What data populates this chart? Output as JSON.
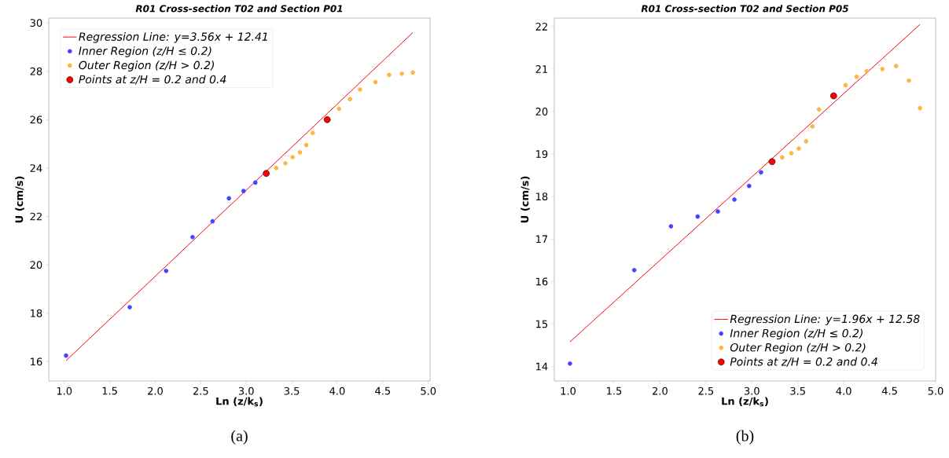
{
  "chart_data": [
    {
      "type": "scatter",
      "title": "R01 Cross-section T02 and Section P01",
      "xlabel": "Ln (z/k$_{s}$)",
      "ylabel": "U (cm/s)",
      "xlim": [
        0.83,
        5.02
      ],
      "ylim": [
        15.2,
        30.2
      ],
      "xticks": [
        {
          "value": 1.0,
          "label": "1.0"
        },
        1.5,
        {
          "value": 2.0,
          "label": "2.0"
        },
        2.5,
        {
          "value": 3.0,
          "label": "3.0"
        },
        3.5,
        {
          "value": 4.0,
          "label": "4.0"
        },
        4.5,
        {
          "value": 5.0,
          "label": "5.0"
        }
      ],
      "yticks": [
        16,
        18,
        20,
        22,
        24,
        26,
        28,
        30
      ],
      "legend": "top left",
      "marker": "circle",
      "annotations": [
        "(a)"
      ],
      "series": [
        {
          "name": "Regression Line: y=3.56x + 12.41",
          "type": "line",
          "marker": "none",
          "color": "#ff0000",
          "x": [
            1.02,
            4.83
          ],
          "values": [
            16.04,
            29.6
          ]
        },
        {
          "name": "Inner Region (z/H ≤ 0.2)",
          "color": "#4444ff",
          "x": [
            1.02,
            1.72,
            2.12,
            2.41,
            2.63,
            2.81,
            2.97,
            3.1
          ],
          "values": [
            16.25,
            18.25,
            19.75,
            21.15,
            21.8,
            22.75,
            23.05,
            23.4
          ]
        },
        {
          "name": "Outer Region (z/H > 0.2)",
          "color": "#ffb640",
          "x": [
            3.33,
            3.43,
            3.51,
            3.59,
            3.66,
            3.73,
            4.02,
            4.14,
            4.25,
            4.42,
            4.57,
            4.71,
            4.83
          ],
          "values": [
            24.0,
            24.2,
            24.45,
            24.65,
            24.95,
            25.45,
            26.45,
            26.85,
            27.25,
            27.55,
            27.85,
            27.9,
            27.95
          ]
        },
        {
          "name": "Points at z/H = 0.2 and 0.4",
          "color": "#ff0000",
          "x": [
            3.22,
            3.89
          ],
          "values": [
            23.78,
            26.0
          ]
        }
      ]
    },
    {
      "type": "scatter",
      "title": "R01 Cross-section T02 and Section P05",
      "xlabel": "Ln (z/k$_{s}$)",
      "ylabel": "U (cm/s)",
      "xlim": [
        0.85,
        5.0
      ],
      "ylim": [
        13.66,
        22.2
      ],
      "xticks": [
        {
          "value": 1.0,
          "label": "1.0"
        },
        1.5,
        {
          "value": 2.0,
          "label": "2.0"
        },
        2.5,
        {
          "value": 3.0,
          "label": "3.0"
        },
        3.5,
        {
          "value": 4.0,
          "label": "4.0"
        },
        4.5,
        {
          "value": 5.0,
          "label": "5.0"
        }
      ],
      "yticks": [
        14,
        15,
        16,
        17,
        18,
        19,
        20,
        21,
        22
      ],
      "legend": "bottom right",
      "marker": "circle",
      "annotations": [
        "(b)"
      ],
      "series": [
        {
          "name": "Regression Line: y=1.96x + 12.58",
          "type": "line",
          "marker": "none",
          "color": "#ff0000",
          "x": [
            1.02,
            4.83
          ],
          "values": [
            14.58,
            22.05
          ]
        },
        {
          "name": "Inner Region (z/H ≤ 0.2)",
          "color": "#4444ff",
          "x": [
            1.02,
            1.72,
            2.12,
            2.41,
            2.63,
            2.81,
            2.97,
            3.1
          ],
          "values": [
            14.07,
            16.27,
            17.3,
            17.53,
            17.65,
            17.93,
            18.25,
            18.57
          ]
        },
        {
          "name": "Outer Region (z/H > 0.2)",
          "color": "#ffb640",
          "x": [
            3.33,
            3.43,
            3.51,
            3.59,
            3.66,
            3.73,
            4.02,
            4.14,
            4.25,
            4.42,
            4.57,
            4.71,
            4.83
          ],
          "values": [
            18.92,
            19.02,
            19.13,
            19.3,
            19.65,
            20.05,
            20.62,
            20.82,
            20.95,
            21.0,
            21.07,
            20.73,
            20.08
          ]
        },
        {
          "name": "Points at z/H = 0.2 and 0.4",
          "color": "#ff0000",
          "x": [
            3.22,
            3.89
          ],
          "values": [
            18.82,
            20.37
          ]
        }
      ]
    }
  ]
}
